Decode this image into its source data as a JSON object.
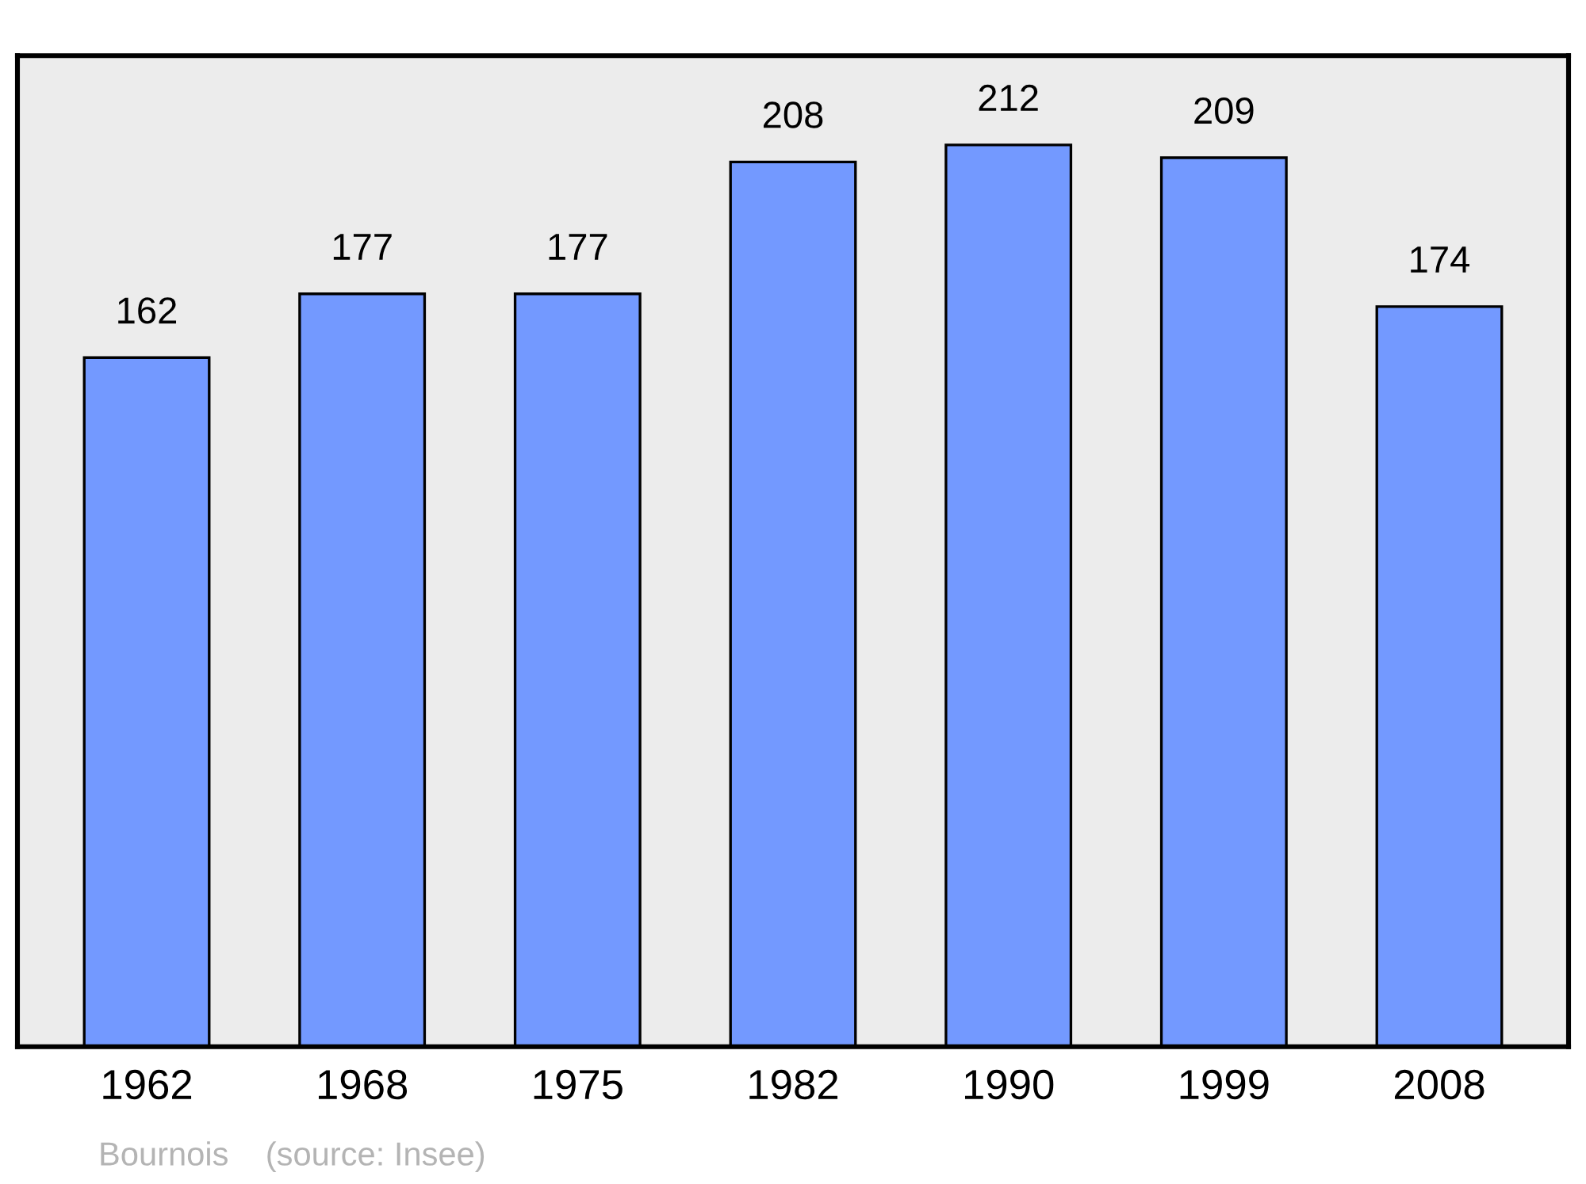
{
  "chart_data": {
    "type": "bar",
    "categories": [
      "1962",
      "1968",
      "1975",
      "1982",
      "1990",
      "1999",
      "2008"
    ],
    "values": [
      162,
      177,
      177,
      208,
      212,
      209,
      174
    ],
    "color": "#7399ff",
    "ylim": [
      0,
      233
    ],
    "data_labels": true,
    "tick_labels": "x",
    "grid": false,
    "annotations": [
      "Bournois    (source: Insee)"
    ]
  }
}
